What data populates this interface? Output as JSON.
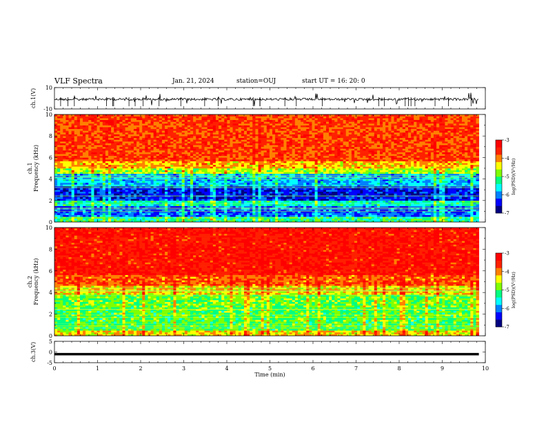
{
  "header": {
    "title": "VLF Spectra",
    "date": "Jan. 21, 2024",
    "station": "station=OUJ",
    "start": "start  UT =   16: 20: 0"
  },
  "colors": {
    "colormap": [
      "#000080",
      "#0000ff",
      "#0080ff",
      "#00ffff",
      "#00ff80",
      "#80ff00",
      "#ffff00",
      "#ff8000",
      "#ff2000",
      "#ff0000"
    ],
    "axis": "#000000"
  },
  "chart_data": [
    {
      "type": "line",
      "ylabel": "ch.1(V)",
      "ylim": [
        -10,
        10
      ],
      "yticks": [
        "10",
        "-10"
      ],
      "xlim": [
        0,
        10
      ],
      "baseline": -1,
      "data_end_x": 9.85
    },
    {
      "type": "heatmap",
      "ylabel": "ch.1\nFrequency (kHz)",
      "ylim": [
        0,
        10
      ],
      "yticks": [
        "0",
        "2",
        "4",
        "6",
        "8",
        "10"
      ],
      "xlim": [
        0,
        10
      ],
      "data_end_x": 9.85,
      "colorbar": {
        "label": "log(PSD)(V²/Hz)",
        "range": [
          -7,
          -3
        ],
        "ticks": [
          "-3",
          "-4",
          "-5",
          "-6",
          "-7"
        ]
      },
      "bands": [
        {
          "f": [
            0,
            0.5
          ],
          "level": -5.2
        },
        {
          "f": [
            0.5,
            1.5
          ],
          "level": -6.1
        },
        {
          "f": [
            1.5,
            2.0
          ],
          "level": -5.4
        },
        {
          "f": [
            2.0,
            3.2
          ],
          "level": -6.4
        },
        {
          "f": [
            3.2,
            4.4
          ],
          "level": -5.8
        },
        {
          "f": [
            4.4,
            5.0
          ],
          "level": -4.7
        },
        {
          "f": [
            5.0,
            5.6
          ],
          "level": -4.2
        },
        {
          "f": [
            5.6,
            10
          ],
          "level": -3.7
        }
      ]
    },
    {
      "type": "heatmap",
      "ylabel": "ch.2\nFrequency (kHz)",
      "ylim": [
        0,
        10
      ],
      "yticks": [
        "0",
        "2",
        "4",
        "6",
        "8",
        "10"
      ],
      "xlim": [
        0,
        10
      ],
      "data_end_x": 9.85,
      "colorbar": {
        "label": "log(PSD)(V²/Hz)",
        "range": [
          -7,
          -3
        ],
        "ticks": [
          "-3",
          "-4",
          "-5",
          "-6",
          "-7"
        ]
      },
      "bands": [
        {
          "f": [
            0,
            0.4
          ],
          "level": -4.3
        },
        {
          "f": [
            0.4,
            2.6
          ],
          "level": -5.0
        },
        {
          "f": [
            2.6,
            3.8
          ],
          "level": -4.9
        },
        {
          "f": [
            3.8,
            4.5
          ],
          "level": -4.3
        },
        {
          "f": [
            4.5,
            5.6
          ],
          "level": -3.8
        },
        {
          "f": [
            5.6,
            10
          ],
          "level": -3.4
        }
      ]
    },
    {
      "type": "line",
      "ylabel": "ch.3(V)",
      "xlabel": "Time (min)",
      "ylim": [
        -5,
        5
      ],
      "yticks": [
        "5",
        "0",
        "-5"
      ],
      "xlim": [
        0,
        10
      ],
      "xticks": [
        "0",
        "1",
        "2",
        "3",
        "4",
        "5",
        "6",
        "7",
        "8",
        "9",
        "10"
      ],
      "baseline": -1,
      "data_end_x": 9.85
    }
  ]
}
